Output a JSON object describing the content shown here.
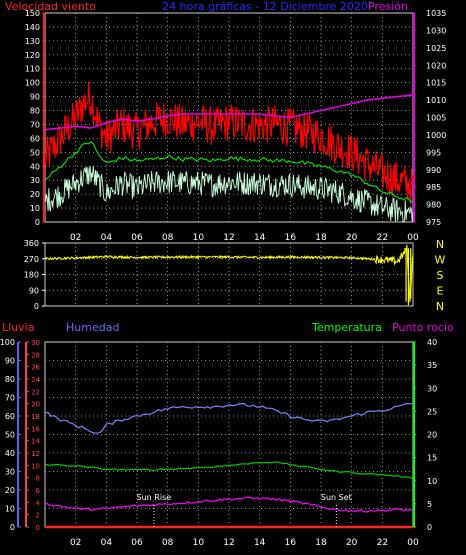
{
  "header": {
    "left_title": "Velocidad viento",
    "center_title": "24 hora gráficas - 12 Diciembre 2020",
    "right_title": "Presión"
  },
  "time_ticks": [
    "02",
    "04",
    "06",
    "08",
    "10",
    "12",
    "14",
    "16",
    "18",
    "20",
    "22",
    "00"
  ],
  "direction_letters": [
    "N",
    "W",
    "S",
    "E",
    "N"
  ],
  "colors": {
    "wind_max": "#ff0000",
    "wind_avg": "#00dd00",
    "wind_min": "#ccffdd",
    "pressure": "#e000e0",
    "direction": "#ffff00",
    "rain": "#ff2020",
    "humidity": "#8080ff",
    "temperature": "#00cc00",
    "dewpoint": "#ff00ff",
    "rain_axis": "#ff4040",
    "hum_axis": "#6060ff",
    "temp_axis": "#00ff00",
    "pressure_axis": "#e000e0"
  },
  "chart_data": [
    {
      "type": "line",
      "name": "wind-pressure",
      "title": "24 hora gráficas - 12 Diciembre 2020",
      "left_label": "Velocidad viento",
      "right_label": "Presión",
      "x_unit": "hours",
      "x_ticks": [
        "02",
        "04",
        "06",
        "08",
        "10",
        "12",
        "14",
        "16",
        "18",
        "20",
        "22",
        "00"
      ],
      "y_left": {
        "min": 0,
        "max": 150,
        "step": 10
      },
      "y_right": {
        "min": 975,
        "max": 1035,
        "step": 5
      },
      "grid": true,
      "series": [
        {
          "key": "wind_max",
          "axis": "left",
          "x": [
            0,
            1,
            2,
            2.5,
            3,
            3.5,
            4,
            5,
            6,
            7,
            8,
            9,
            10,
            11,
            12,
            13,
            14,
            15,
            16,
            17,
            18,
            19,
            20,
            21,
            22,
            23,
            24
          ],
          "y": [
            45,
            60,
            75,
            85,
            90,
            70,
            60,
            70,
            65,
            72,
            75,
            70,
            72,
            68,
            72,
            70,
            70,
            70,
            68,
            65,
            62,
            55,
            50,
            42,
            35,
            30,
            25
          ]
        },
        {
          "key": "wind_avg",
          "axis": "left",
          "x": [
            0,
            1,
            2,
            2.5,
            3,
            3.5,
            4,
            5,
            6,
            7,
            8,
            9,
            10,
            11,
            12,
            13,
            14,
            15,
            16,
            17,
            18,
            19,
            20,
            21,
            22,
            23,
            24
          ],
          "y": [
            30,
            40,
            50,
            55,
            58,
            48,
            42,
            46,
            44,
            45,
            47,
            45,
            45,
            44,
            46,
            45,
            45,
            44,
            44,
            42,
            40,
            37,
            34,
            28,
            22,
            18,
            15
          ]
        },
        {
          "key": "wind_min",
          "axis": "left",
          "x": [
            0,
            1,
            2,
            2.5,
            3,
            3.5,
            4,
            5,
            6,
            7,
            8,
            9,
            10,
            11,
            12,
            13,
            14,
            15,
            16,
            17,
            18,
            19,
            20,
            21,
            22,
            23,
            24
          ],
          "y": [
            15,
            20,
            28,
            32,
            35,
            28,
            20,
            28,
            24,
            28,
            29,
            28,
            28,
            27,
            29,
            28,
            28,
            27,
            27,
            25,
            24,
            22,
            18,
            14,
            10,
            8,
            6
          ]
        },
        {
          "key": "pressure",
          "axis": "right",
          "x": [
            0,
            1,
            2,
            3,
            4,
            5,
            6,
            7,
            8,
            9,
            10,
            11,
            12,
            13,
            14,
            15,
            16,
            17,
            18,
            19,
            20,
            21,
            22,
            23,
            24
          ],
          "y": [
            1001.5,
            1002,
            1002.5,
            1002,
            1003.5,
            1004.5,
            1004,
            1004.5,
            1005.5,
            1006,
            1006,
            1006,
            1006,
            1006,
            1006,
            1005.5,
            1005,
            1006,
            1007,
            1008,
            1009,
            1010,
            1010.5,
            1011,
            1011.5
          ]
        }
      ]
    },
    {
      "type": "line",
      "name": "wind-direction",
      "x_ticks": [
        "02",
        "04",
        "06",
        "08",
        "10",
        "12",
        "14",
        "16",
        "18",
        "20",
        "22",
        "00"
      ],
      "y_left": {
        "min": 0,
        "max": 360,
        "ticks": [
          0,
          90,
          180,
          270,
          360
        ]
      },
      "grid": true,
      "series": [
        {
          "key": "direction",
          "axis": "left",
          "x": [
            0,
            2,
            4,
            6,
            8,
            10,
            12,
            14,
            16,
            18,
            20,
            22,
            23,
            23.4,
            23.6,
            23.8,
            24
          ],
          "y": [
            270,
            275,
            282,
            278,
            280,
            280,
            280,
            278,
            280,
            278,
            276,
            265,
            255,
            300,
            330,
            20,
            320
          ]
        }
      ]
    },
    {
      "type": "line",
      "name": "rain-humidity-temperature",
      "labels": {
        "rain": "Lluvia",
        "humidity": "Humedad",
        "temperature": "Temperatura",
        "dewpoint": "Punto rocío"
      },
      "x_ticks": [
        "02",
        "04",
        "06",
        "08",
        "10",
        "12",
        "14",
        "16",
        "18",
        "20",
        "22",
        "00"
      ],
      "y_hum": {
        "min": 0,
        "max": 100,
        "step": 10
      },
      "y_rain": {
        "min": 0,
        "max": 30,
        "step": 2
      },
      "y_temp": {
        "min": 0,
        "max": 40,
        "step": 5
      },
      "grid": true,
      "annotations": [
        {
          "label": "Sun Rise",
          "hour": 7.1
        },
        {
          "label": "Sun Set",
          "hour": 19.0
        }
      ],
      "series": [
        {
          "key": "rain",
          "axis": "rain",
          "x": [
            0,
            24
          ],
          "y": [
            0,
            0
          ]
        },
        {
          "key": "humidity",
          "axis": "hum",
          "x": [
            0,
            1,
            2,
            3,
            3.5,
            4,
            5,
            6,
            7,
            8,
            9,
            10,
            11,
            12,
            13,
            14,
            15,
            16,
            17,
            18,
            19,
            20,
            21,
            22,
            23,
            24
          ],
          "y": [
            62,
            58,
            55,
            52,
            50,
            55,
            58,
            60,
            62,
            64,
            65,
            65,
            65,
            66,
            66,
            65,
            63,
            60,
            58,
            57,
            58,
            60,
            62,
            63,
            65,
            67
          ]
        },
        {
          "key": "temperature",
          "axis": "temp",
          "x": [
            0,
            2,
            4,
            6,
            8,
            10,
            12,
            13,
            14,
            15,
            16,
            17,
            18,
            19,
            20,
            21,
            22,
            23,
            24
          ],
          "y": [
            13.5,
            13.2,
            12.5,
            12.3,
            12.5,
            12.8,
            13.3,
            13.6,
            14.0,
            14.0,
            13.5,
            13.0,
            12.5,
            12.0,
            11.8,
            11.5,
            11.3,
            11.0,
            10.5
          ]
        },
        {
          "key": "dewpoint",
          "axis": "temp",
          "x": [
            0,
            1,
            2,
            3,
            4,
            5,
            6,
            7,
            8,
            9,
            10,
            11,
            12,
            13,
            14,
            15,
            16,
            17,
            18,
            19,
            20,
            21,
            22,
            23,
            24
          ],
          "y": [
            5.0,
            4.5,
            4.0,
            3.8,
            4.0,
            4.3,
            4.6,
            4.8,
            5.0,
            5.2,
            5.5,
            5.8,
            6.0,
            6.2,
            6.3,
            6.0,
            5.6,
            5.0,
            4.3,
            3.8,
            3.5,
            3.5,
            3.6,
            3.8,
            3.6
          ]
        }
      ]
    }
  ]
}
